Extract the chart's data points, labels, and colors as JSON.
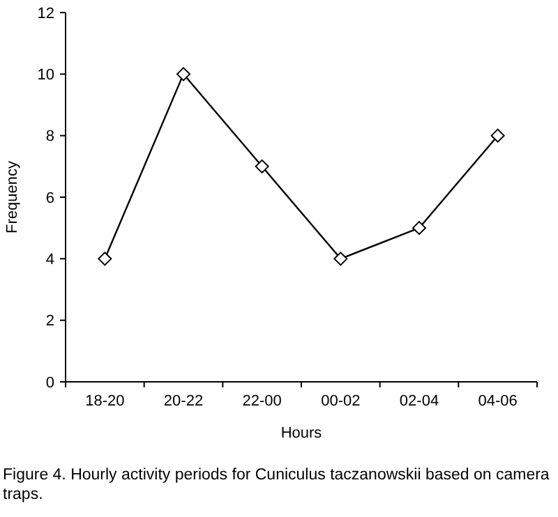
{
  "chart_data": {
    "type": "line",
    "xlabel": "Hours",
    "ylabel": "Frequency",
    "categories": [
      "18-20",
      "20-22",
      "22-00",
      "00-02",
      "02-04",
      "04-06"
    ],
    "series": [
      {
        "color": "#000000",
        "values": [
          4,
          10,
          7,
          4,
          5,
          8
        ]
      }
    ],
    "ylim": [
      0,
      12
    ],
    "yticks": [
      0,
      2,
      4,
      6,
      8,
      10,
      12
    ],
    "marker": "diamond",
    "line_style": "solid",
    "annotations": [
      "Figure 4. Hourly activity periods for Cuniculus taczanowskii based on camera traps."
    ]
  }
}
